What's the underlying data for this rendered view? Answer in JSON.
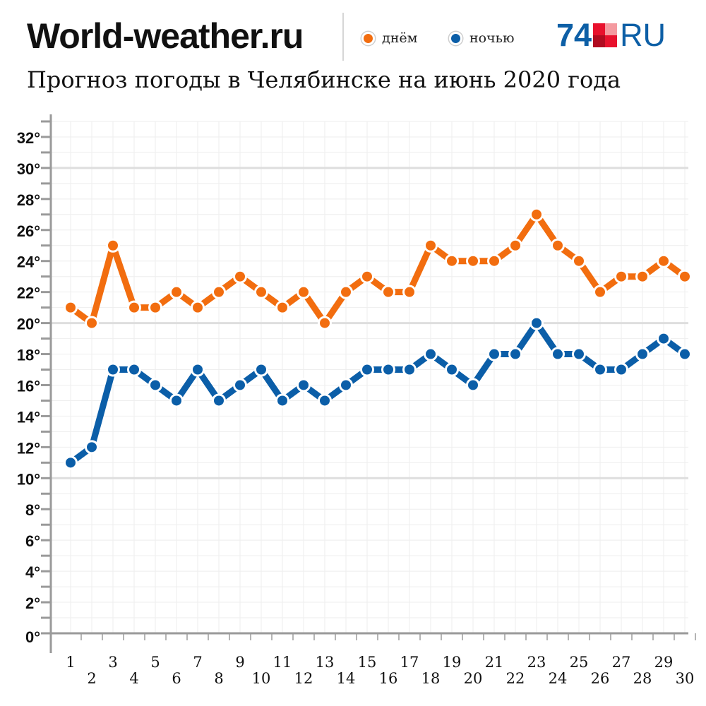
{
  "header": {
    "brand": "World-weather.ru",
    "subtitle": "Прогноз погоды в Челябинске на июнь 2020 года",
    "logo_number": "74",
    "logo_suffix": "RU"
  },
  "colors": {
    "day": "#f26d0f",
    "night": "#0b5ea8",
    "logo_blue": "#0d5fa6",
    "logo_red": "#e8112d",
    "logo_red_dark": "#b00b20",
    "logo_pink": "#f49aa0",
    "grid_minor": "#eeeeee",
    "grid_major": "#dedede",
    "axis": "#9a9a9a"
  },
  "chart_data": {
    "type": "line",
    "x": [
      1,
      2,
      3,
      4,
      5,
      6,
      7,
      8,
      9,
      10,
      11,
      12,
      13,
      14,
      15,
      16,
      17,
      18,
      19,
      20,
      21,
      22,
      23,
      24,
      25,
      26,
      27,
      28,
      29,
      30
    ],
    "series": [
      {
        "name": "днём",
        "color": "#f26d0f",
        "values": [
          21,
          20,
          25,
          21,
          21,
          22,
          21,
          22,
          23,
          22,
          21,
          22,
          20,
          22,
          23,
          22,
          22,
          25,
          24,
          24,
          24,
          25,
          27,
          25,
          24,
          22,
          23,
          23,
          24,
          23
        ]
      },
      {
        "name": "ночью",
        "color": "#0b5ea8",
        "values": [
          11,
          12,
          17,
          17,
          16,
          15,
          17,
          15,
          16,
          17,
          15,
          16,
          15,
          16,
          17,
          17,
          17,
          18,
          17,
          16,
          18,
          18,
          20,
          18,
          18,
          17,
          17,
          18,
          19,
          18
        ]
      }
    ],
    "ylim": [
      0,
      33
    ],
    "y_ticks": [
      0,
      2,
      4,
      6,
      8,
      10,
      12,
      14,
      16,
      18,
      20,
      22,
      24,
      26,
      28,
      30,
      32
    ],
    "y_tick_labels": [
      "0°",
      "2°",
      "4°",
      "6°",
      "8°",
      "10°",
      "12°",
      "14°",
      "16°",
      "18°",
      "20°",
      "22°",
      "24°",
      "26°",
      "28°",
      "30°",
      "32°"
    ],
    "y_major_gridlines": [
      10,
      20,
      30
    ],
    "x_tick_labels": [
      "1",
      "2",
      "3",
      "4",
      "5",
      "6",
      "7",
      "8",
      "9",
      "10",
      "11",
      "12",
      "13",
      "14",
      "15",
      "16",
      "17",
      "18",
      "19",
      "20",
      "21",
      "22",
      "23",
      "24",
      "25",
      "26",
      "27",
      "28",
      "29",
      "30"
    ],
    "grid": true,
    "legend": "top"
  }
}
